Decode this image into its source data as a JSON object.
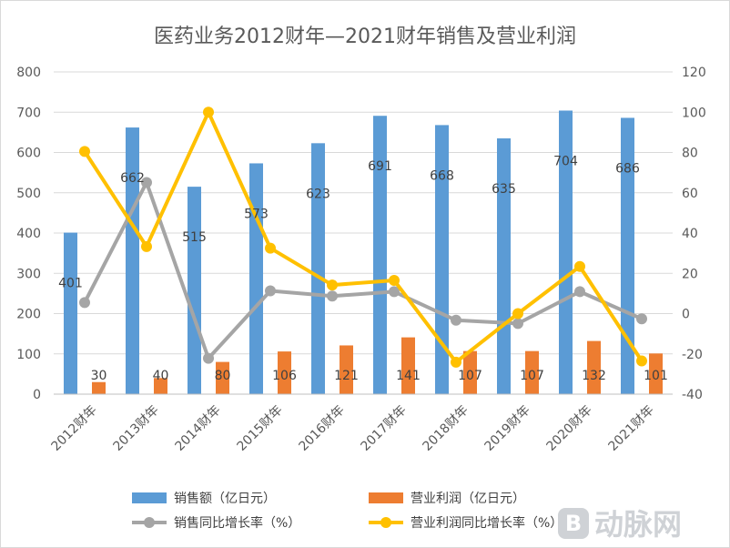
{
  "chart_data": {
    "type": "bar",
    "title": "医药业务2012财年—2021财年销售及营业利润",
    "categories": [
      "2012财年",
      "2013财年",
      "2014财年",
      "2015财年",
      "2016财年",
      "2017财年",
      "2018财年",
      "2019财年",
      "2020财年",
      "2021财年"
    ],
    "y_left": {
      "min": 0,
      "max": 800,
      "step": 100,
      "ticks": [
        "0",
        "100",
        "200",
        "300",
        "400",
        "500",
        "600",
        "700",
        "800"
      ]
    },
    "y_right": {
      "min": -40,
      "max": 120,
      "step": 20,
      "ticks": [
        "-40",
        "-20",
        "0",
        "20",
        "40",
        "60",
        "80",
        "100",
        "120"
      ]
    },
    "grid": true,
    "legend_position": "bottom",
    "series": [
      {
        "name": "销售额（亿日元）",
        "kind": "bar",
        "axis": "left",
        "color": "#5b9bd5",
        "values": [
          401,
          662,
          515,
          573,
          623,
          691,
          668,
          635,
          704,
          686
        ],
        "labels": [
          "401",
          "662",
          "515",
          "573",
          "623",
          "691",
          "668",
          "635",
          "704",
          "686"
        ]
      },
      {
        "name": "营业利润（亿日元）",
        "kind": "bar",
        "axis": "left",
        "color": "#ed7d31",
        "values": [
          30,
          40,
          80,
          106,
          121,
          141,
          107,
          107,
          132,
          101
        ],
        "labels": [
          "30",
          "40",
          "80",
          "106",
          "121",
          "141",
          "107",
          "107",
          "132",
          "101"
        ]
      },
      {
        "name": "销售同比增长率（%）",
        "kind": "line",
        "axis": "right",
        "color": "#a5a5a5",
        "values": [
          5.5,
          65.1,
          -22.2,
          11.3,
          8.7,
          10.9,
          -3.3,
          -4.9,
          10.9,
          -2.6
        ]
      },
      {
        "name": "营业利润同比增长率（%）",
        "kind": "line",
        "axis": "right",
        "color": "#ffc000",
        "values": [
          80.5,
          33.3,
          100.0,
          32.5,
          14.2,
          16.5,
          -24.1,
          0.0,
          23.4,
          -23.5
        ]
      }
    ]
  },
  "watermark": {
    "text": "动脉网",
    "icon_glyph": "B"
  }
}
